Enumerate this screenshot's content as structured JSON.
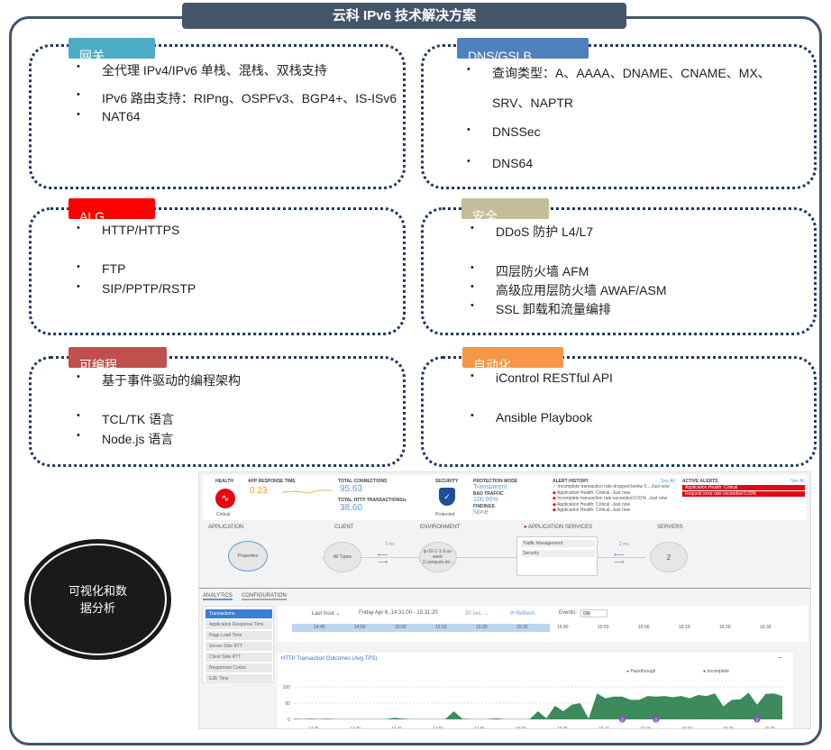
{
  "title": "云科 IPv6 技术解决方案",
  "sections": [
    {
      "label": "网关",
      "color": "#4bacc6",
      "items": [
        "全代理 IPv4/IPv6 单栈、混栈、双栈支持",
        "IPv6 路由支持：RIPng、OSPFv3、BGP4+、IS-ISv6",
        "NAT64"
      ]
    },
    {
      "label": "DNS/GSLB",
      "color": "#4f81bd",
      "items": [
        "查询类型：A、AAAA、DNAME、CNAME、MX、",
        "SRV、NAPTR",
        "DNSSec",
        "DNS64"
      ]
    },
    {
      "label": "ALG",
      "color": "#ff0000",
      "items": [
        "HTTP/HTTPS",
        "FTP",
        "SIP/PPTP/RSTP"
      ]
    },
    {
      "label": "安全",
      "color": "#c4bd97",
      "items": [
        "DDoS 防护 L4/L7",
        "四层防火墙 AFM",
        "高级应用层防火墙 AWAF/ASM",
        "SSL 卸载和流量编排"
      ]
    },
    {
      "label": "可编程",
      "color": "#c0504d",
      "items": [
        "基于事件驱动的编程架构",
        "TCL/TK 语言",
        "Node.js 语言"
      ]
    },
    {
      "label": "自动化",
      "color": "#f79646",
      "items": [
        "iControl RESTful API",
        "Ansible Playbook"
      ]
    }
  ],
  "circle_label": "可视化和数据分析",
  "dashboard": {
    "health": {
      "label": "HEALTH",
      "status": "Critical"
    },
    "response": {
      "label": "APP RESPONSE TIME",
      "value": "0.23"
    },
    "connections": {
      "label": "TOTAL CONNECTIONS",
      "value": "95.63",
      "http_label": "TOTAL HTTP TRANSACTIONS/s",
      "http_value": "38.60"
    },
    "security": {
      "label": "SECURITY",
      "status": "Protected"
    },
    "protection": {
      "mode_label": "PROTECTION MODE",
      "mode": "Transparent",
      "bad_label": "BAD TRAFFIC",
      "bad": "100.00%",
      "findings_label": "FINDINGS",
      "findings": "None"
    },
    "alert_history": {
      "label": "ALERT HISTORY",
      "see_all": "See All",
      "items": [
        "Incomplete transaction rate dropped below 0....Just now",
        "Application Health: Critical -Just now",
        "Incomplete transaction rate exceeded 0.01% -Just now",
        "Application Health: Critical -Just now",
        "Application Health: Critical -Just now"
      ]
    },
    "active_alerts": {
      "label": "ACTIVE ALERTS",
      "see_all": "See All",
      "items": [
        "Application Health: Critical",
        "Request error rate exceeded 0.09%"
      ]
    },
    "topology": {
      "application": "APPLICATION",
      "properties": "Properties",
      "client": "CLIENT",
      "all_types": "All Types",
      "latency1": "1 ms",
      "environment": "ENVIRONMENT",
      "env_node": "ip-10-1-1-9.us-west-2.compute.int...",
      "app_services": "APPLICATION SERVICES",
      "traffic": "Traffic Management",
      "security": "Security",
      "latency2": "2 ms",
      "servers": "SERVERS",
      "servers_count": "2"
    },
    "tabs": [
      "ANALYTICS",
      "CONFIGURATION"
    ],
    "side_items": [
      "Transactions",
      "Application Response Time",
      "Page Load Time",
      "Server Side RTT",
      "Client Side RTT",
      "Responses Codes",
      "E2E Time"
    ],
    "toolbar": {
      "range": "Last hour ⌄",
      "dates": "Friday Apr 6, 14:31:00 - 15:31:20",
      "interval": "30 sec. ⌄",
      "refresh": "⟳ Refresh",
      "events": "Events:",
      "events_state": "ON"
    },
    "timeline_ticks": [
      "14:40",
      "14:50",
      "15:00",
      "15:10",
      "15:20",
      "15:30",
      "15:40",
      "15:50",
      "16:00",
      "16:10",
      "16:20",
      "16:30"
    ]
  },
  "chart_data": {
    "type": "area",
    "title": "HTTP Transaction Outcomes (Avg TPS)",
    "legend": [
      "Passthrough",
      "Incomplete"
    ],
    "legend_placement": "top-right",
    "colors": {
      "Passthrough": "#3d8a5c",
      "Incomplete": "#111111"
    },
    "x_ticks": [
      "14:35",
      "14:40",
      "14:45",
      "14:50",
      "14:55",
      "15:00",
      "15:05",
      "15:10",
      "15:15",
      "15:20",
      "15:25",
      "15:30"
    ],
    "y_ticks": [
      0,
      50,
      100
    ],
    "ylim": [
      0,
      100
    ],
    "series": [
      {
        "name": "Passthrough",
        "values": [
          2,
          1,
          2,
          1,
          2,
          1,
          1,
          1,
          1,
          1,
          1,
          1,
          5,
          2,
          1,
          1,
          1,
          1,
          1,
          25,
          2,
          1,
          1,
          1,
          3,
          1,
          1,
          1,
          1,
          25,
          3,
          42,
          25,
          45,
          50,
          2,
          80,
          65,
          70,
          70,
          60,
          60,
          72,
          70,
          72,
          68,
          72,
          65,
          75,
          72,
          80,
          40,
          60,
          62,
          82,
          45,
          78,
          80,
          72
        ]
      }
    ],
    "event_markers": [
      {
        "x": "15:12",
        "count": "2"
      },
      {
        "x": "15:16",
        "count": "2"
      },
      {
        "x": "15:28",
        "count": "2"
      }
    ]
  }
}
